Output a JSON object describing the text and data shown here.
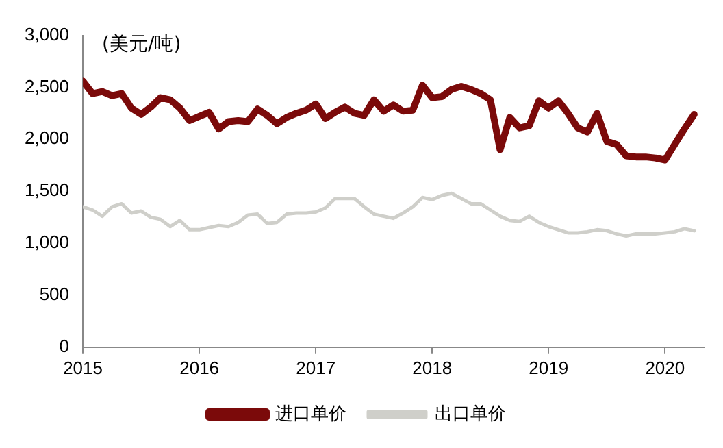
{
  "chart_data": {
    "type": "line",
    "annotations": [
      "(美元/吨)"
    ],
    "x": [
      "2015-01",
      "2015-02",
      "2015-03",
      "2015-04",
      "2015-05",
      "2015-06",
      "2015-07",
      "2015-08",
      "2015-09",
      "2015-10",
      "2015-11",
      "2015-12",
      "2016-01",
      "2016-02",
      "2016-03",
      "2016-04",
      "2016-05",
      "2016-06",
      "2016-07",
      "2016-08",
      "2016-09",
      "2016-10",
      "2016-11",
      "2016-12",
      "2017-01",
      "2017-02",
      "2017-03",
      "2017-04",
      "2017-05",
      "2017-06",
      "2017-07",
      "2017-08",
      "2017-09",
      "2017-10",
      "2017-11",
      "2017-12",
      "2018-01",
      "2018-02",
      "2018-03",
      "2018-04",
      "2018-05",
      "2018-06",
      "2018-07",
      "2018-08",
      "2018-09",
      "2018-10",
      "2018-11",
      "2018-12",
      "2019-01",
      "2019-02",
      "2019-03",
      "2019-04",
      "2019-05",
      "2019-06",
      "2019-07",
      "2019-08",
      "2019-09",
      "2019-10",
      "2019-11",
      "2019-12",
      "2020-01",
      "2020-02",
      "2020-03",
      "2020-04"
    ],
    "series": [
      {
        "name": "进口单价",
        "color": "#7b0a0a",
        "values": [
          2560,
          2440,
          2460,
          2420,
          2440,
          2300,
          2240,
          2310,
          2400,
          2380,
          2300,
          2180,
          2220,
          2260,
          2100,
          2170,
          2180,
          2170,
          2290,
          2230,
          2150,
          2210,
          2250,
          2280,
          2340,
          2200,
          2260,
          2310,
          2250,
          2230,
          2380,
          2270,
          2330,
          2270,
          2280,
          2520,
          2400,
          2410,
          2480,
          2510,
          2480,
          2440,
          2380,
          1900,
          2210,
          2110,
          2130,
          2370,
          2300,
          2370,
          2250,
          2110,
          2070,
          2250,
          1980,
          1950,
          1840,
          1830,
          1830,
          1820,
          1800,
          1950,
          2100,
          2240
        ]
      },
      {
        "name": "出口单价",
        "color": "#cfcfca",
        "values": [
          1350,
          1320,
          1260,
          1350,
          1380,
          1290,
          1310,
          1250,
          1230,
          1160,
          1220,
          1130,
          1130,
          1150,
          1170,
          1160,
          1200,
          1270,
          1280,
          1190,
          1200,
          1280,
          1290,
          1290,
          1300,
          1340,
          1430,
          1430,
          1430,
          1350,
          1280,
          1260,
          1240,
          1290,
          1350,
          1440,
          1420,
          1460,
          1480,
          1430,
          1380,
          1380,
          1320,
          1260,
          1220,
          1210,
          1260,
          1200,
          1160,
          1130,
          1100,
          1100,
          1110,
          1130,
          1120,
          1090,
          1070,
          1090,
          1090,
          1090,
          1100,
          1110,
          1140,
          1120
        ]
      }
    ],
    "xlim": [
      "2015-01",
      "2020-05"
    ],
    "xticks": [
      "2015",
      "2016",
      "2017",
      "2018",
      "2019",
      "2020"
    ],
    "ylim": [
      0,
      3000
    ],
    "yticks": [
      {
        "value": 0,
        "label": "0"
      },
      {
        "value": 500,
        "label": "500"
      },
      {
        "value": 1000,
        "label": "1,000"
      },
      {
        "value": 1500,
        "label": "1,500"
      },
      {
        "value": 2000,
        "label": "2,000"
      },
      {
        "value": 2500,
        "label": "2,500"
      },
      {
        "value": 3000,
        "label": "3,000"
      }
    ],
    "grid": false,
    "legend": "bottom",
    "marker": "none",
    "line_style": "solid"
  }
}
